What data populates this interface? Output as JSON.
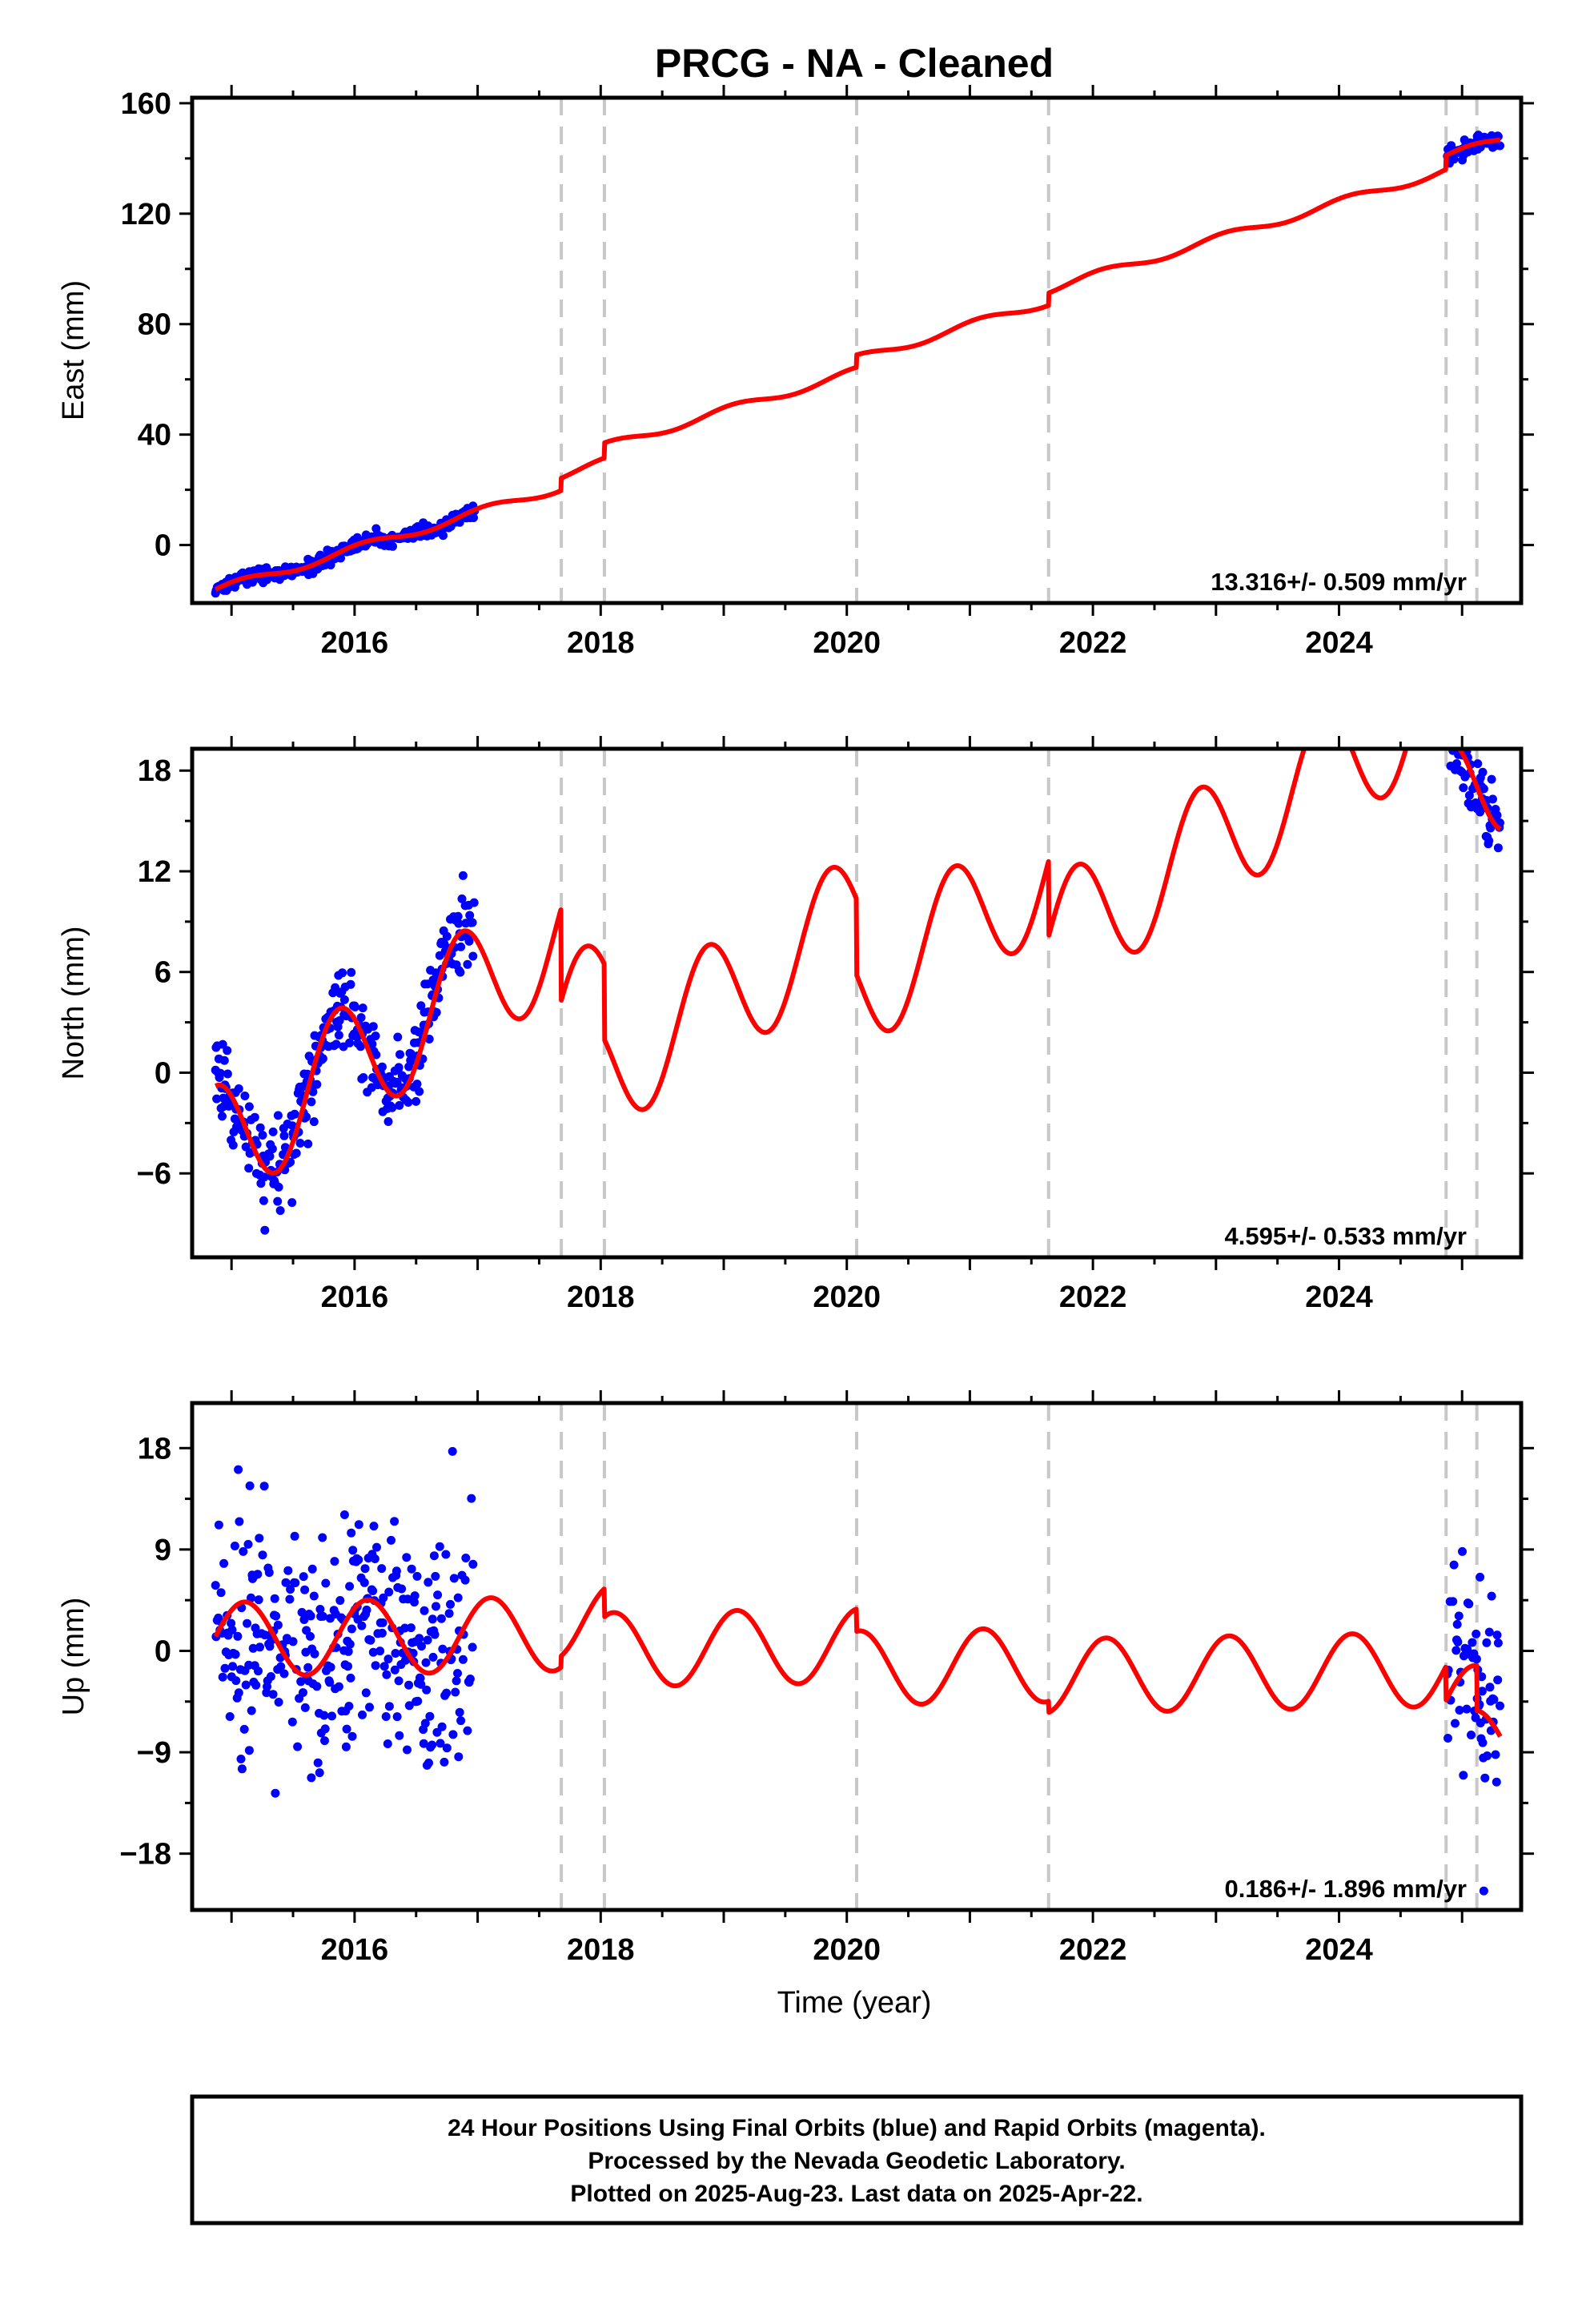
{
  "title": "PRCG  - NA - Cleaned",
  "xlabel": "Time (year)",
  "colors": {
    "final_orbits": "#0000ff",
    "model": "#ff0000",
    "equipment_change": "#c8c8c8",
    "frame": "#000000"
  },
  "footer": [
    "24 Hour Positions Using Final Orbits (blue) and Rapid Orbits (magenta).",
    "Processed by the Nevada Geodetic Laboratory.",
    "Plotted on 2025-Aug-23. Last data on 2025-Apr-22."
  ],
  "chart_data": [
    {
      "type": "scatter",
      "component": "East",
      "ylabel": "East (mm)",
      "rate_text": "13.316+/- 0.509 mm/yr",
      "xlim": [
        2014.68,
        2025.48
      ],
      "ylim": [
        -21,
        162
      ],
      "yticks": [
        0,
        40,
        80,
        120,
        160
      ],
      "xticks": [
        2016,
        2018,
        2020,
        2022,
        2024
      ],
      "grid": false,
      "vertical_dashed_lines": [
        2017.68,
        2018.03,
        2020.08,
        2021.64,
        2024.87,
        2025.12
      ],
      "observation_ranges": [
        [
          2014.87,
          2016.98
        ],
        [
          2024.88,
          2025.31
        ]
      ],
      "model": {
        "rate": 13.316,
        "ref_year": 2014.87,
        "offset": -16.5,
        "annual_amplitude": 1.5,
        "annual_phase": 1.1,
        "steps": [
          {
            "year": 2017.68,
            "value": 4.5
          },
          {
            "year": 2018.03,
            "value": 5.5
          },
          {
            "year": 2020.08,
            "value": 4.5
          },
          {
            "year": 2021.64,
            "value": 4.5
          },
          {
            "year": 2024.87,
            "value": 5.0
          }
        ]
      },
      "scatter_noise": 1.3
    },
    {
      "type": "scatter",
      "component": "North",
      "ylabel": "North (mm)",
      "rate_text": "4.595+/- 0.533 mm/yr",
      "xlim": [
        2014.68,
        2025.48
      ],
      "ylim": [
        -11,
        19.3
      ],
      "yticks": [
        -6,
        0,
        6,
        12,
        18
      ],
      "xticks": [
        2016,
        2018,
        2020,
        2022,
        2024
      ],
      "grid": false,
      "vertical_dashed_lines": [
        2017.68,
        2018.03,
        2020.08,
        2021.64,
        2024.87,
        2025.12
      ],
      "observation_ranges": [
        [
          2014.87,
          2016.98
        ],
        [
          2024.88,
          2025.31
        ]
      ],
      "model": {
        "rate": 4.595,
        "ref_year": 2014.87,
        "offset": -4.5,
        "annual_amplitude": 3.7,
        "annual_phase": 2.4,
        "steps": [
          {
            "year": 2017.68,
            "value": -5.5
          },
          {
            "year": 2018.03,
            "value": -4.5
          },
          {
            "year": 2020.08,
            "value": -4.5
          },
          {
            "year": 2021.64,
            "value": -4.5
          },
          {
            "year": 2024.87,
            "value": -6.5
          }
        ]
      },
      "scatter_noise": 1.3
    },
    {
      "type": "scatter",
      "component": "Up",
      "ylabel": "Up (mm)",
      "rate_text": "0.186+/- 1.896 mm/yr",
      "xlim": [
        2014.68,
        2025.48
      ],
      "ylim": [
        -23,
        22
      ],
      "yticks": [
        -18,
        -9,
        0,
        9,
        18
      ],
      "xticks": [
        2016,
        2018,
        2020,
        2022,
        2024
      ],
      "grid": false,
      "vertical_dashed_lines": [
        2017.68,
        2018.03,
        2020.08,
        2021.64,
        2024.87,
        2025.12
      ],
      "observation_ranges": [
        [
          2014.87,
          2016.98
        ],
        [
          2024.88,
          2025.31
        ]
      ],
      "model": {
        "rate": 0.186,
        "ref_year": 2014.87,
        "offset": 1.0,
        "annual_amplitude": 3.3,
        "annual_phase": 0.9,
        "steps": [
          {
            "year": 2017.68,
            "value": 1.0
          },
          {
            "year": 2018.03,
            "value": -2.5
          },
          {
            "year": 2020.08,
            "value": -2.0
          },
          {
            "year": 2021.64,
            "value": -1.0
          },
          {
            "year": 2024.87,
            "value": -3.0
          },
          {
            "year": 2025.12,
            "value": -4.0
          }
        ]
      },
      "scatter_noise": 5.0
    }
  ]
}
